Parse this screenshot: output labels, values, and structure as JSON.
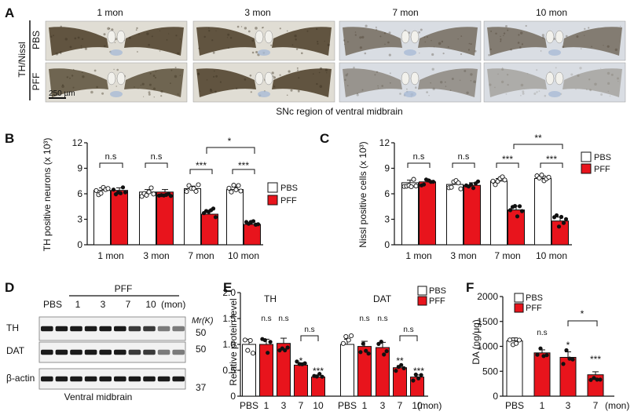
{
  "colors": {
    "pbs": "#ffffff",
    "pff": "#e8141c",
    "blot_bg": "#f2f2f2",
    "band": "#1a1a1a"
  },
  "panel_a": {
    "label": "A",
    "columns": [
      "1 mon",
      "3 mon",
      "7 mon",
      "10 mon"
    ],
    "rows": [
      "PBS",
      "PFF"
    ],
    "side_label": "TH/Nissl",
    "scale_bar": "250 µm",
    "caption": "SNc region of ventral midbrain"
  },
  "panel_b": {
    "label": "B",
    "sig": [
      "n.s",
      "n.s",
      "***",
      "***",
      "*"
    ]
  },
  "panel_c": {
    "label": "C",
    "sig": [
      "n.s",
      "n.s",
      "***",
      "***",
      "**"
    ]
  },
  "panel_d": {
    "label": "D",
    "group": "PFF",
    "lanes": [
      "PBS",
      "1",
      "3",
      "7",
      "10"
    ],
    "lane_unit": "(mon)",
    "mr_label": "Mr(K)",
    "rows": [
      "TH",
      "DAT",
      "β-actin"
    ],
    "markers": [
      "50",
      "50",
      "37"
    ],
    "caption": "Ventral midbrain"
  },
  "panel_e": {
    "label": "E",
    "groups": [
      "TH",
      "DAT"
    ],
    "x_unit": "(mon)",
    "legend": [
      "PBS",
      "PFF"
    ],
    "sig": [
      "n.s",
      "n.s",
      "*",
      "***",
      "n.s",
      "n.s",
      "n.s",
      "**",
      "***",
      "n.s"
    ]
  },
  "panel_f": {
    "label": "F",
    "x_unit": "(mon)",
    "sig": [
      "n.s",
      "*",
      "***",
      "*"
    ]
  },
  "chart_data": [
    {
      "type": "bar",
      "id": "B",
      "ylabel": "TH positive neurons (x 10³)",
      "ylim": [
        0,
        12
      ],
      "yticks": [
        0,
        3,
        6,
        9,
        12
      ],
      "categories": [
        "1 mon",
        "3 mon",
        "7 mon",
        "10 mon"
      ],
      "legend": [
        "PBS",
        "PFF"
      ],
      "series": [
        {
          "name": "PBS",
          "values": [
            6.4,
            6.2,
            6.6,
            6.5
          ]
        },
        {
          "name": "PFF",
          "values": [
            6.4,
            6.2,
            3.6,
            2.4
          ]
        }
      ]
    },
    {
      "type": "bar",
      "id": "C",
      "ylabel": "Nissl positive cells (x 10³)",
      "ylim": [
        0,
        12
      ],
      "yticks": [
        0,
        3,
        6,
        9,
        12
      ],
      "categories": [
        "1 mon",
        "3 mon",
        "7 mon",
        "10 mon"
      ],
      "legend": [
        "PBS",
        "PFF"
      ],
      "series": [
        {
          "name": "PBS",
          "values": [
            7.3,
            7.1,
            7.5,
            7.8
          ]
        },
        {
          "name": "PFF",
          "values": [
            7.4,
            7.0,
            4.1,
            2.8
          ]
        }
      ]
    },
    {
      "type": "bar",
      "id": "E",
      "ylabel": "Relative protein level",
      "ylim": [
        0,
        2.0
      ],
      "yticks": [
        0,
        0.5,
        1.0,
        1.5,
        2.0
      ],
      "ytick_labels": [
        "0",
        "0.5",
        "1.0",
        "1.5",
        "2.0"
      ],
      "categories": [
        "PBS",
        "1",
        "3",
        "7",
        "10",
        "PBS",
        "1",
        "3",
        "7",
        "10"
      ],
      "groups": [
        "TH",
        "DAT"
      ],
      "values": [
        1.0,
        1.0,
        1.02,
        0.6,
        0.37,
        1.0,
        0.96,
        0.94,
        0.55,
        0.37
      ],
      "legend": [
        "PBS",
        "PFF"
      ]
    },
    {
      "type": "bar",
      "id": "F",
      "ylabel": "DA (ng/μg)",
      "ylim": [
        0,
        2000
      ],
      "yticks": [
        0,
        500,
        1000,
        1500,
        2000
      ],
      "categories": [
        "PBS",
        "1",
        "3",
        "7"
      ],
      "values": [
        1110,
        870,
        780,
        430
      ],
      "legend": [
        "PBS",
        "PFF"
      ]
    }
  ]
}
